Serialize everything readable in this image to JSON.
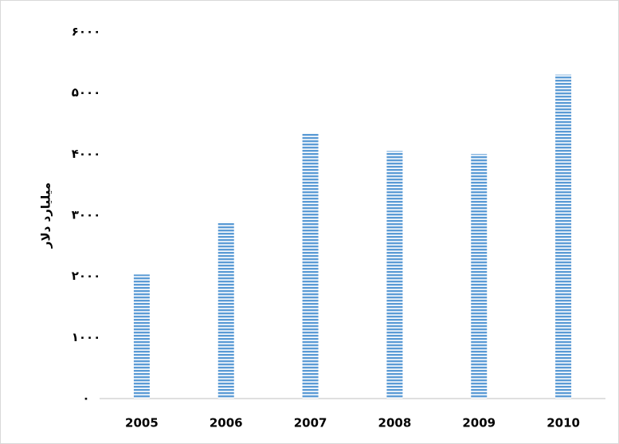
{
  "chart_data": {
    "type": "bar",
    "y_label": "میلیارد دلار",
    "categories": [
      "2005",
      "2006",
      "2007",
      "2008",
      "2009",
      "2010"
    ],
    "values": [
      2030,
      2890,
      4340,
      4050,
      4000,
      5300
    ],
    "color": "#5b9bd5",
    "ylim": [
      0,
      6000
    ],
    "yticks": [
      {
        "value": 0,
        "label": "۰"
      },
      {
        "value": 1000,
        "label": "۱۰۰۰"
      },
      {
        "value": 2000,
        "label": "۲۰۰۰"
      },
      {
        "value": 3000,
        "label": "۳۰۰۰"
      },
      {
        "value": 4000,
        "label": "۴۰۰۰"
      },
      {
        "value": 5000,
        "label": "۵۰۰۰"
      },
      {
        "value": 6000,
        "label": "۶۰۰۰"
      }
    ],
    "grid": false
  }
}
